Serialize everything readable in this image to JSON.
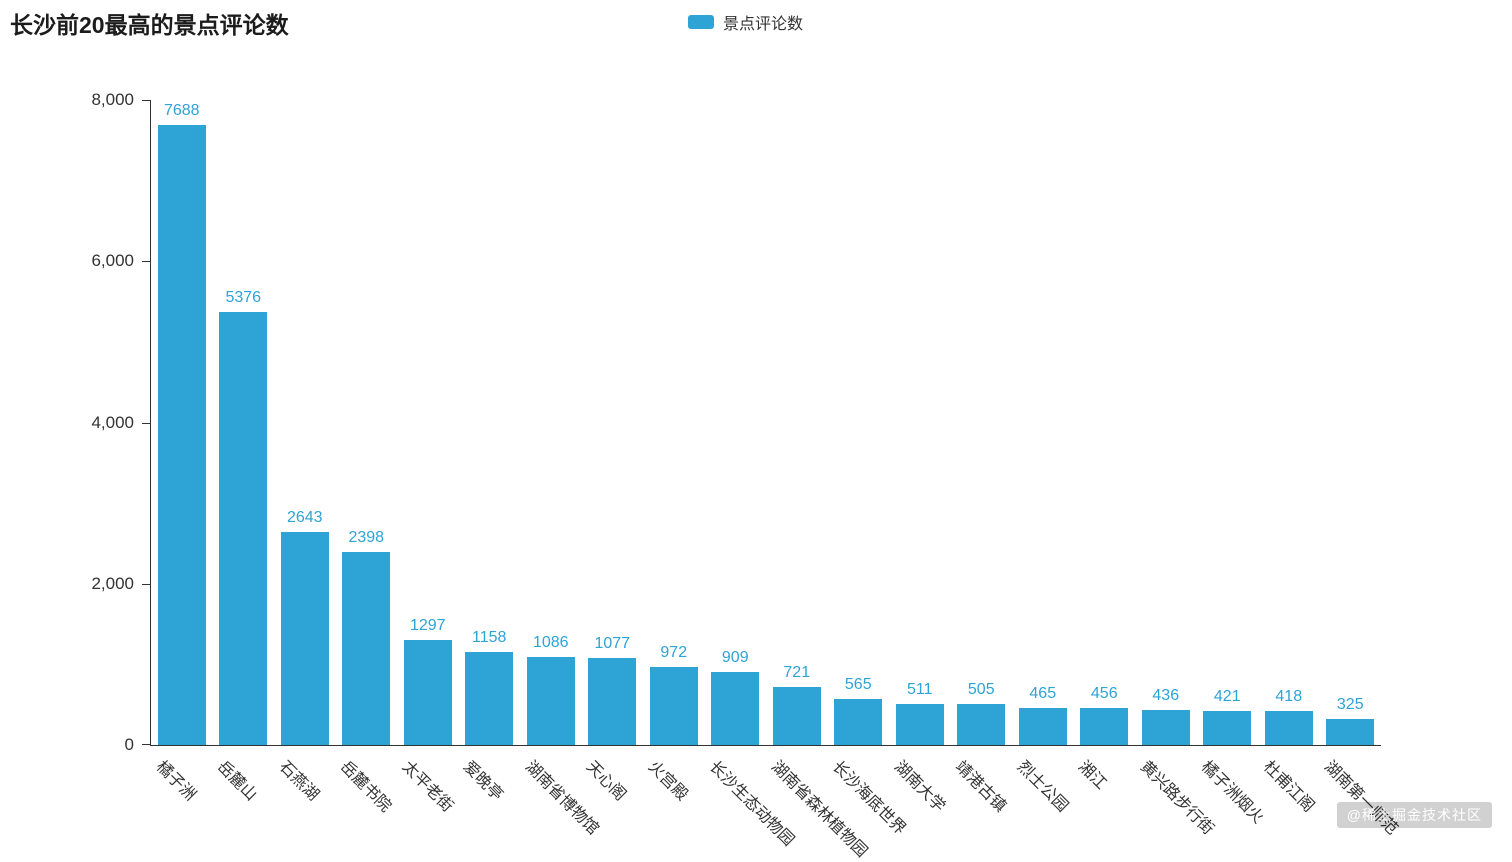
{
  "title": "长沙前20最高的景点评论数",
  "legend": {
    "label": "景点评论数"
  },
  "watermark": "@稀土掘金技术社区",
  "chart_data": {
    "type": "bar",
    "title": "长沙前20最高的景点评论数",
    "series_name": "景点评论数",
    "categories": [
      "橘子洲",
      "岳麓山",
      "石燕湖",
      "岳麓书院",
      "太平老街",
      "爱晚亭",
      "湖南省博物馆",
      "天心阁",
      "火宫殿",
      "长沙生态动物园",
      "湖南省森林植物园",
      "长沙海底世界",
      "湖南大学",
      "靖港古镇",
      "烈士公园",
      "湘江",
      "黄兴路步行街",
      "橘子洲烟火",
      "杜甫江阁",
      "湖南第一师范"
    ],
    "values": [
      7688,
      5376,
      2643,
      2398,
      1297,
      1158,
      1086,
      1077,
      972,
      909,
      721,
      565,
      511,
      505,
      465,
      456,
      436,
      421,
      418,
      325
    ],
    "xlabel": "",
    "ylabel": "",
    "ylim": [
      0,
      8000
    ],
    "yticks": [
      0,
      2000,
      4000,
      6000,
      8000
    ],
    "ytick_labels": [
      "0",
      "2,000",
      "4,000",
      "6,000",
      "8,000"
    ],
    "grid": false,
    "legend_position": "top-center",
    "x_label_rotation_deg": 45,
    "bar_color": "#2ea3d6",
    "value_label_color": "#2ea3d6",
    "axis_color": "#333333"
  }
}
